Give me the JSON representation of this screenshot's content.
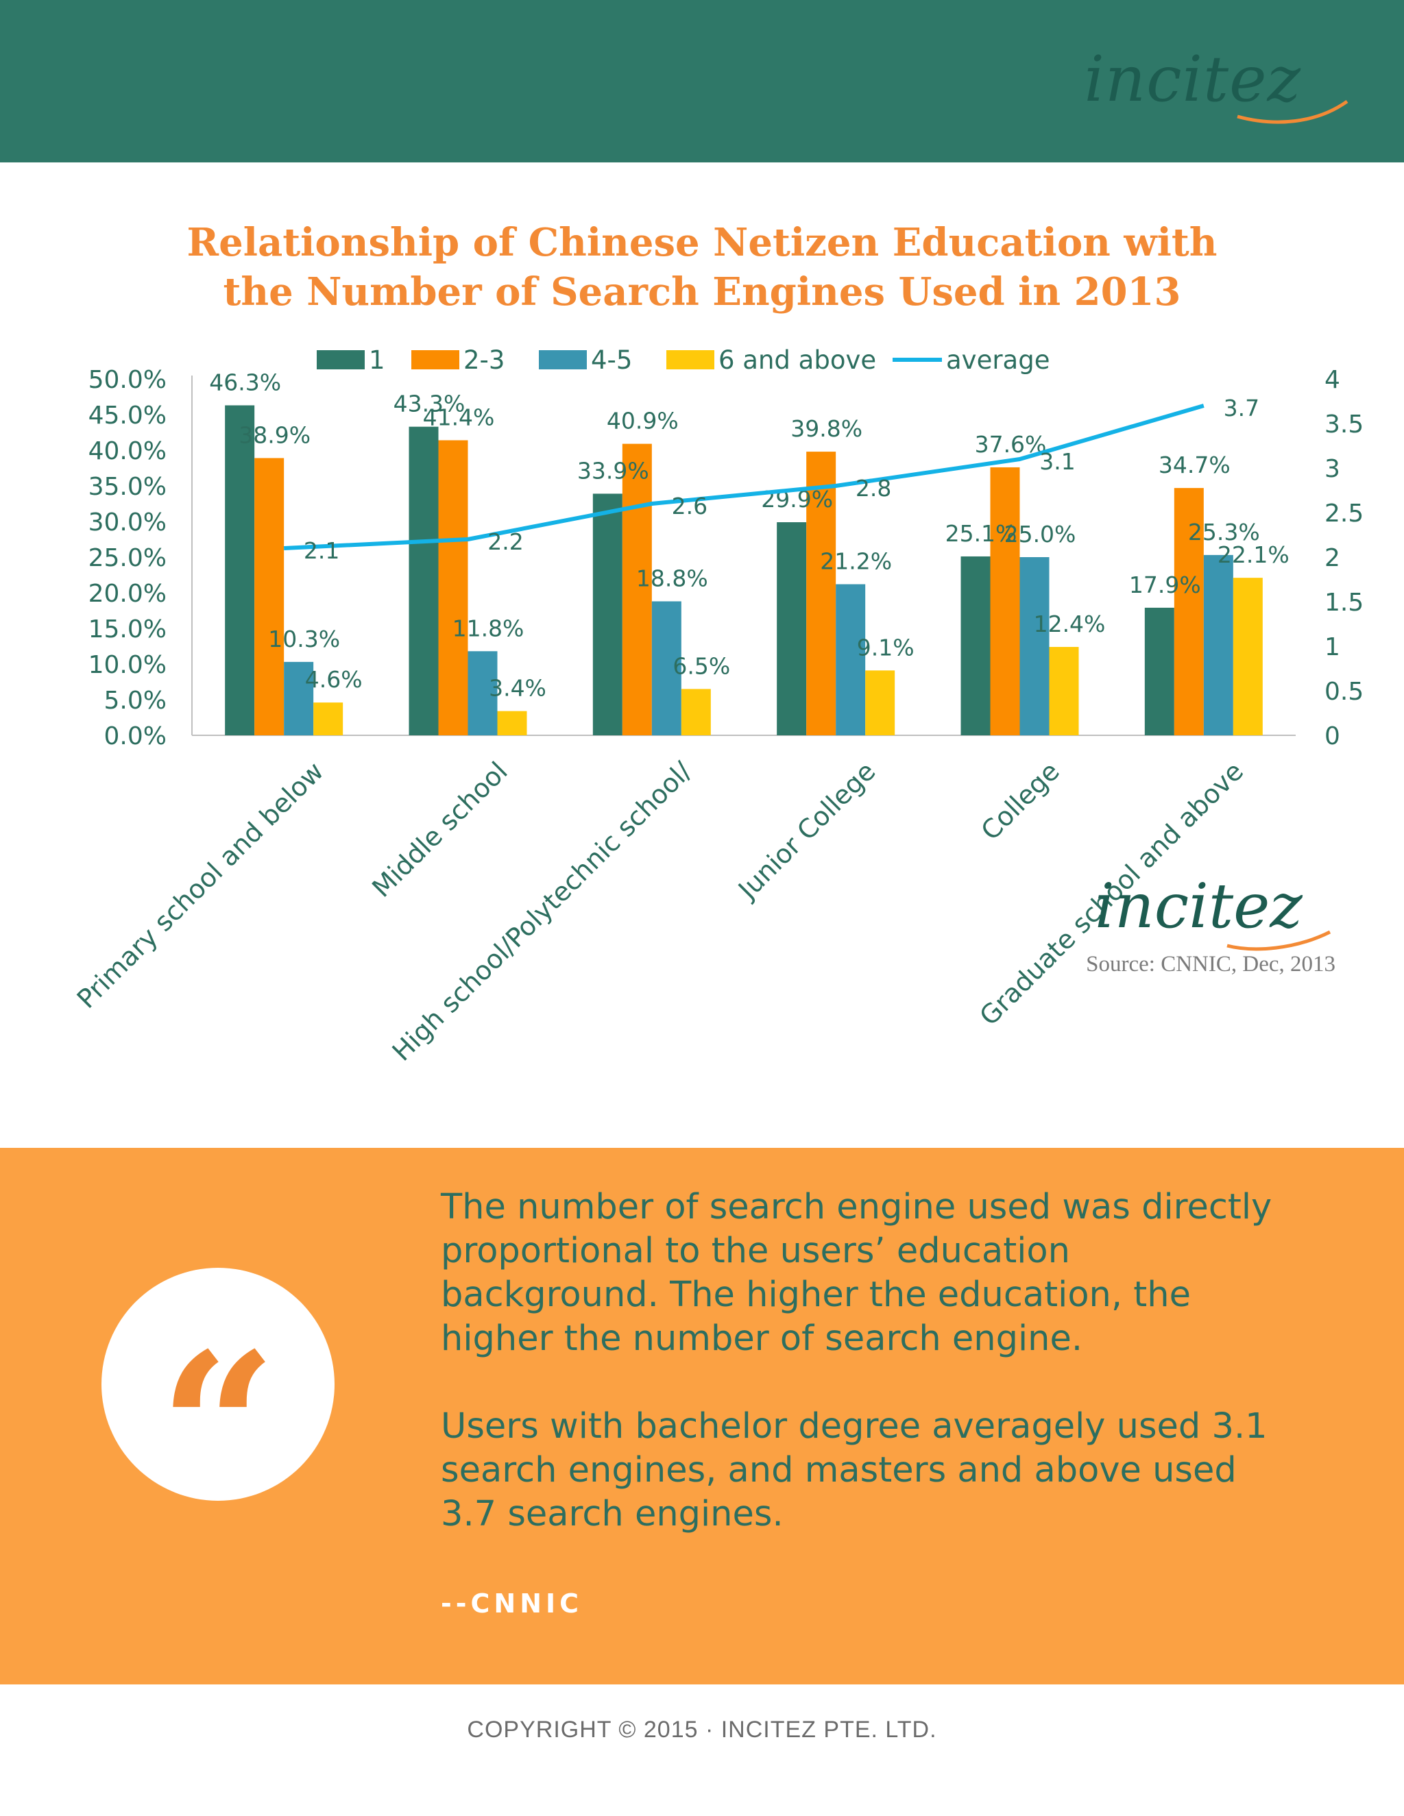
{
  "brand": {
    "name": "incitez",
    "primary_color": "#2f7868",
    "accent_color": "#f38a35"
  },
  "title_lines": [
    "Relationship of Chinese Netizen Education with",
    "the Number of Search Engines Used in 2013"
  ],
  "chart_data": {
    "type": "bar",
    "categories": [
      "Primary school and below",
      "Middle school",
      "High school/Polytechnic school/",
      "Junior College",
      "College",
      "Graduate school and above"
    ],
    "series": [
      {
        "name": "1",
        "color": "#2f7868",
        "values": [
          46.3,
          43.3,
          33.9,
          29.9,
          25.1,
          17.9
        ],
        "labels": [
          "46.3%",
          "43.3%",
          "33.9%",
          "29.9%",
          "25.1%",
          "17.9%"
        ]
      },
      {
        "name": "2-3",
        "color": "#fb8c00",
        "values": [
          38.9,
          41.4,
          40.9,
          39.8,
          37.6,
          34.7
        ],
        "labels": [
          "38.9%",
          "41.4%",
          "40.9%",
          "39.8%",
          "37.6%",
          "34.7%"
        ]
      },
      {
        "name": "4-5",
        "color": "#3a95b0",
        "values": [
          10.3,
          11.8,
          18.8,
          21.2,
          25.0,
          25.3
        ],
        "labels": [
          "10.3%",
          "11.8%",
          "18.8%",
          "21.2%",
          "25.0%",
          "25.3%"
        ]
      },
      {
        "name": "6 and above",
        "color": "#ffc90a",
        "values": [
          4.6,
          3.4,
          6.5,
          9.1,
          12.4,
          22.1
        ],
        "labels": [
          "4.6%",
          "3.4%",
          "6.5%",
          "9.1%",
          "12.4%",
          "22.1%"
        ]
      }
    ],
    "line_series": {
      "name": "average",
      "color": "#14b2e6",
      "values": [
        2.1,
        2.2,
        2.6,
        2.8,
        3.1,
        3.7
      ],
      "labels": [
        "2.1",
        "2.2",
        "2.6",
        "2.8",
        "3.1",
        "3.7"
      ]
    },
    "y_left": {
      "min": 0,
      "max": 50,
      "ticks": [
        "0.0%",
        "5.0%",
        "10.0%",
        "15.0%",
        "20.0%",
        "25.0%",
        "30.0%",
        "35.0%",
        "40.0%",
        "45.0%",
        "50.0%"
      ]
    },
    "y_right": {
      "min": 0,
      "max": 4,
      "ticks": [
        "0",
        "0.5",
        "1",
        "1.5",
        "2",
        "2.5",
        "3",
        "3.5",
        "4"
      ]
    },
    "legend_position": "top",
    "source": "Source: CNNIC, Dec, 2013",
    "grid": false
  },
  "quote": {
    "paragraph1_lines": [
      "The number of search engine used was directly",
      "proportional to the users’ education",
      "background. The higher the education, the",
      "higher the number of search engine."
    ],
    "paragraph2_lines": [
      "Users with bachelor degree averagely used 3.1",
      "search engines, and masters and above used",
      "3.7 search engines."
    ],
    "source": "--CNNIC",
    "mark": "“"
  },
  "footer": {
    "copyright": "COPYRIGHT © 2015 · INCITEZ PTE. LTD."
  }
}
